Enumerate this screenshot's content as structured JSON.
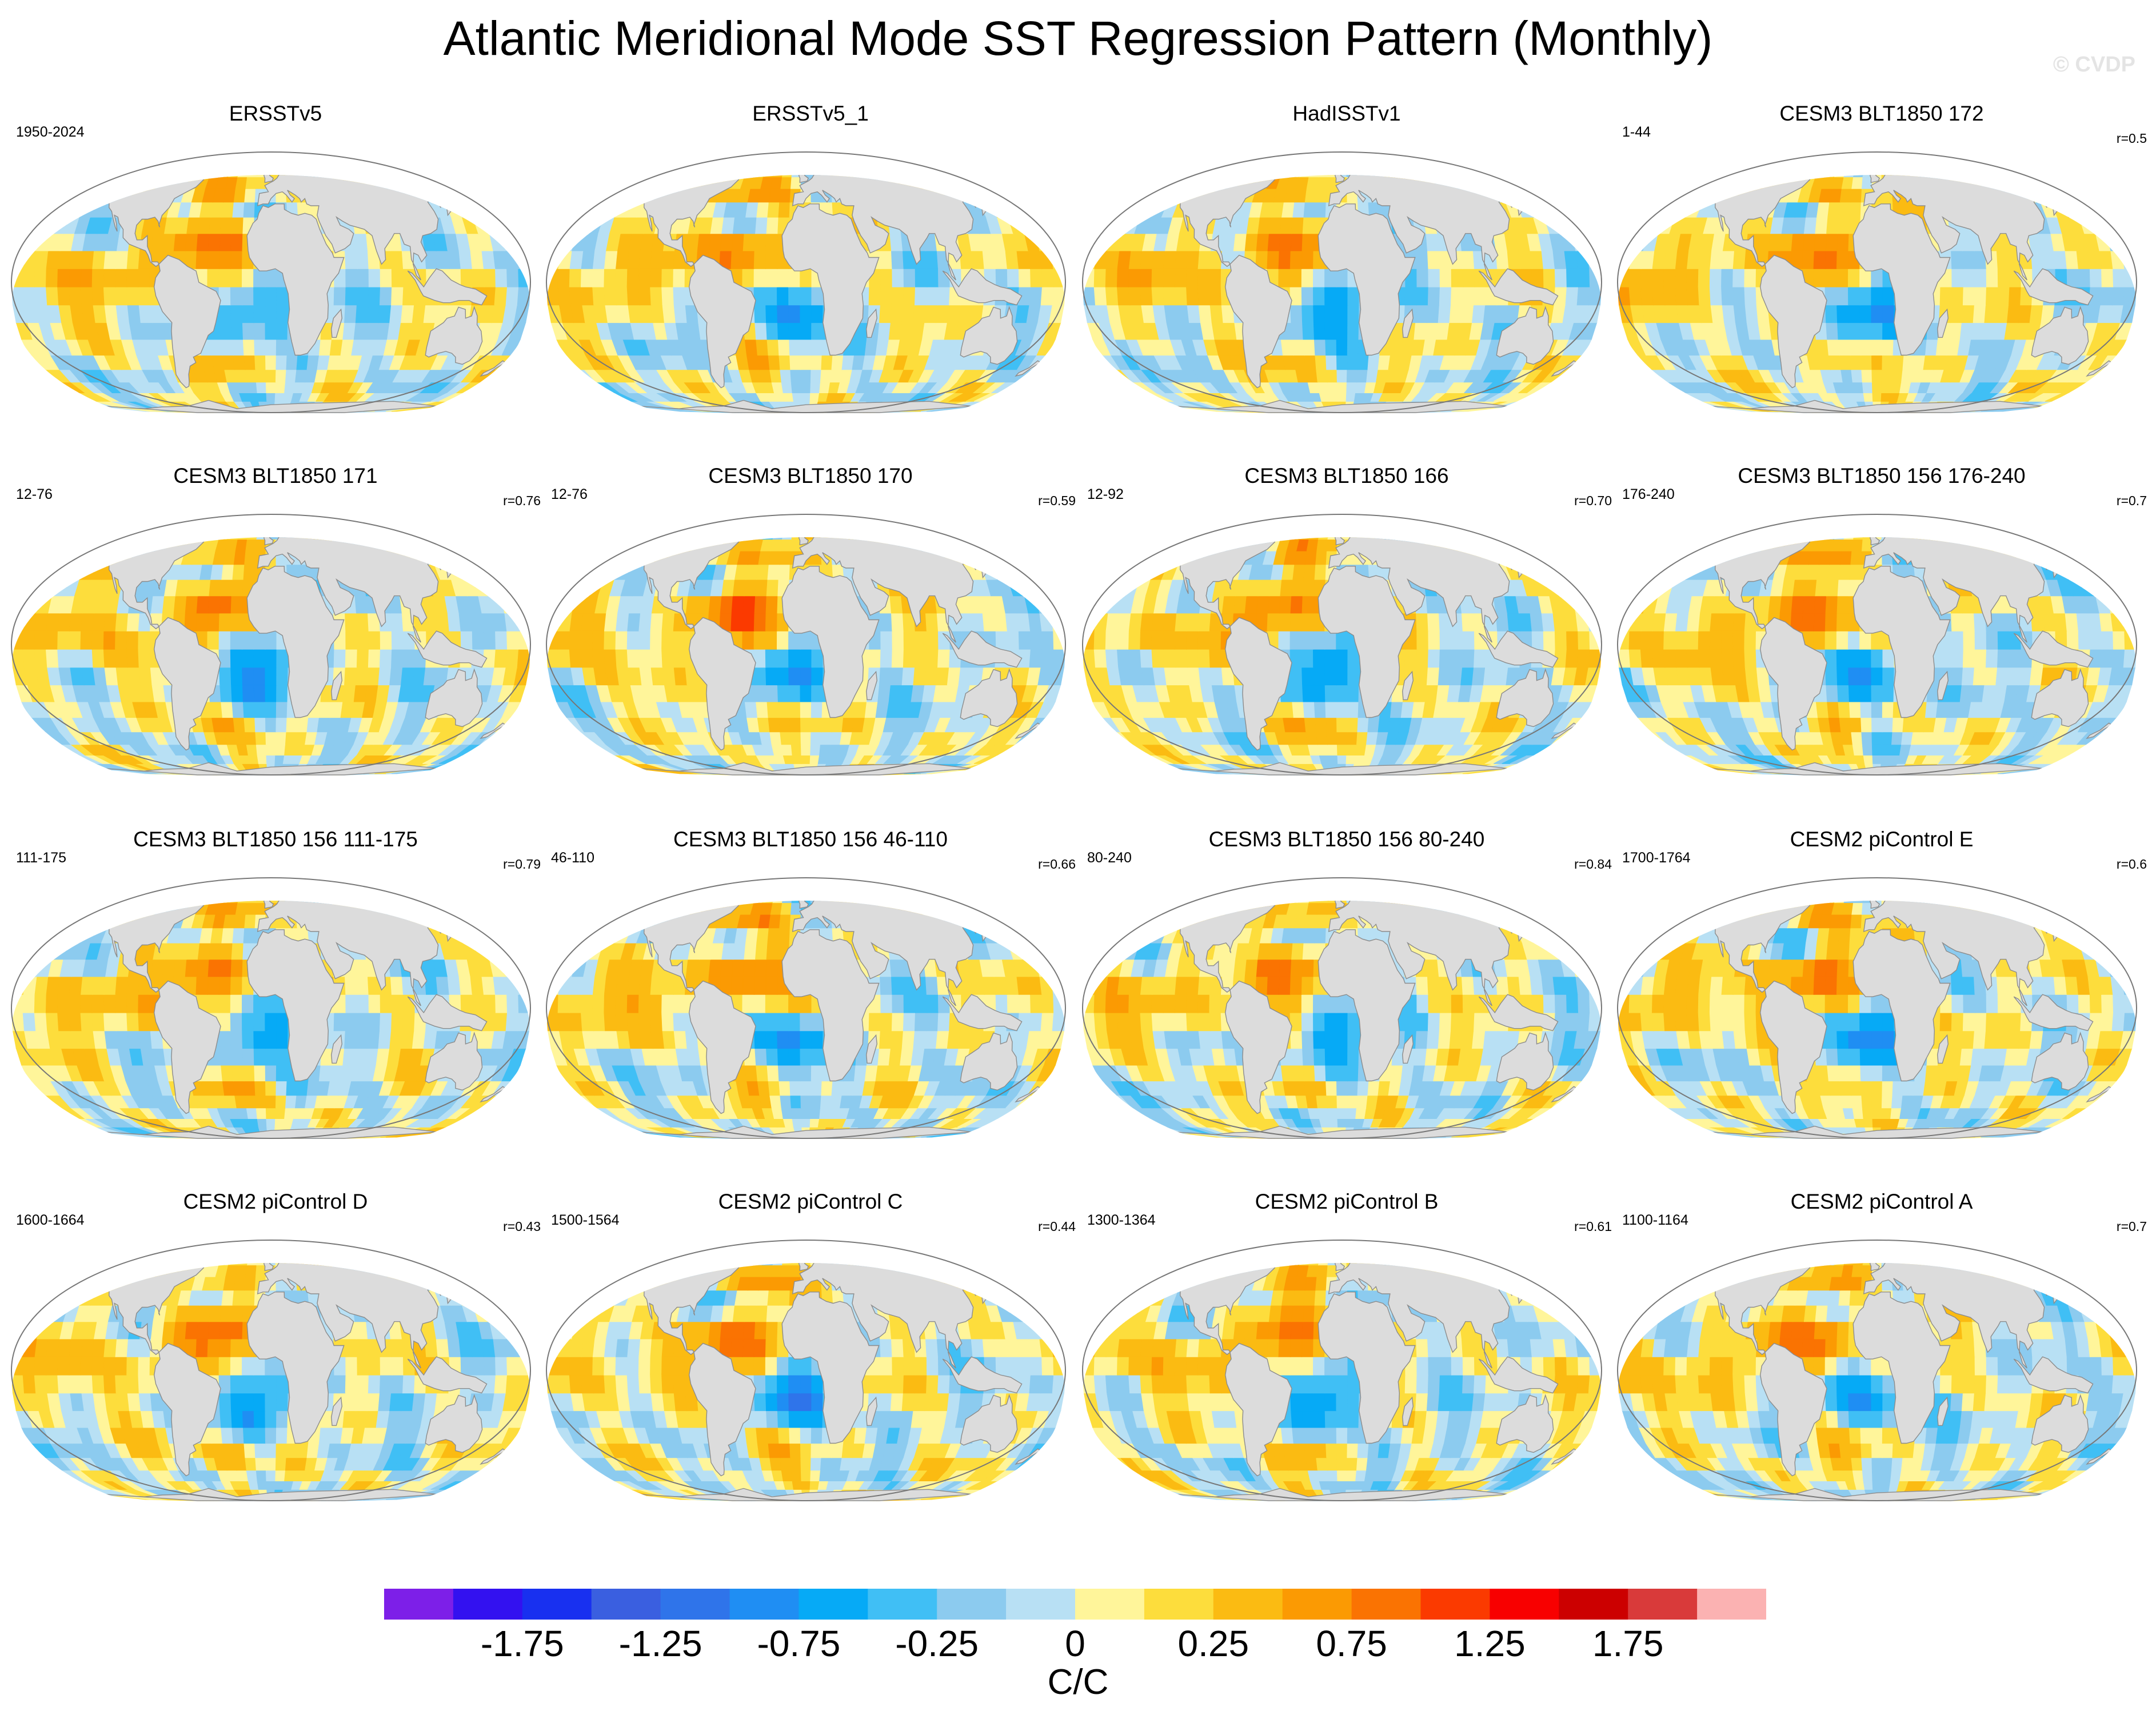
{
  "title": "Atlantic Meridional Mode SST Regression Pattern (Monthly)",
  "watermark": "© CVDP",
  "panels": [
    {
      "title": "ERSSTv5",
      "years": "1950-2024",
      "corr": "",
      "seed": 1
    },
    {
      "title": "ERSSTv5_1",
      "years": "",
      "corr": "",
      "seed": 2
    },
    {
      "title": "HadISSTv1",
      "years": "",
      "corr": "",
      "seed": 3
    },
    {
      "title": "CESM3 BLT1850 172",
      "years": "1-44",
      "corr": "r=0.5",
      "seed": 4
    },
    {
      "title": "CESM3 BLT1850 171",
      "years": "12-76",
      "corr": "r=0.76",
      "seed": 5
    },
    {
      "title": "CESM3 BLT1850 170",
      "years": "12-76",
      "corr": "r=0.59",
      "seed": 6
    },
    {
      "title": "CESM3 BLT1850 166",
      "years": "12-92",
      "corr": "r=0.70",
      "seed": 7
    },
    {
      "title": "CESM3 BLT1850 156 176-240",
      "years": "176-240",
      "corr": "r=0.7",
      "seed": 8
    },
    {
      "title": "CESM3 BLT1850 156 111-175",
      "years": "111-175",
      "corr": "r=0.79",
      "seed": 9
    },
    {
      "title": "CESM3 BLT1850 156 46-110",
      "years": "46-110",
      "corr": "r=0.66",
      "seed": 10
    },
    {
      "title": "CESM3 BLT1850 156 80-240",
      "years": "80-240",
      "corr": "r=0.84",
      "seed": 11
    },
    {
      "title": "CESM2 piControl E",
      "years": "1700-1764",
      "corr": "r=0.6",
      "seed": 12
    },
    {
      "title": "CESM2 piControl D",
      "years": "1600-1664",
      "corr": "r=0.43",
      "seed": 13
    },
    {
      "title": "CESM2 piControl C",
      "years": "1500-1564",
      "corr": "r=0.44",
      "seed": 14
    },
    {
      "title": "CESM2 piControl B",
      "years": "1300-1364",
      "corr": "r=0.61",
      "seed": 15
    },
    {
      "title": "CESM2 piControl A",
      "years": "1100-1164",
      "corr": "r=0.7",
      "seed": 16
    }
  ],
  "colorbar": {
    "colors": [
      "#7d1fe8",
      "#3311f0",
      "#1830f0",
      "#3a5fe0",
      "#2f74ea",
      "#1f8ef3",
      "#06aaf6",
      "#40bff5",
      "#8ccbef",
      "#b8e0f4",
      "#fff59a",
      "#fddd3c",
      "#fbbb12",
      "#fb9a03",
      "#fa7302",
      "#fb3a00",
      "#f80000",
      "#cc0000",
      "#d93a3a",
      "#fbb2b2"
    ],
    "labels": [
      "-1.75",
      "-1.25",
      "-0.75",
      "-0.25",
      "0",
      "0.25",
      "0.75",
      "1.25",
      "1.75"
    ],
    "units": "C/C"
  }
}
